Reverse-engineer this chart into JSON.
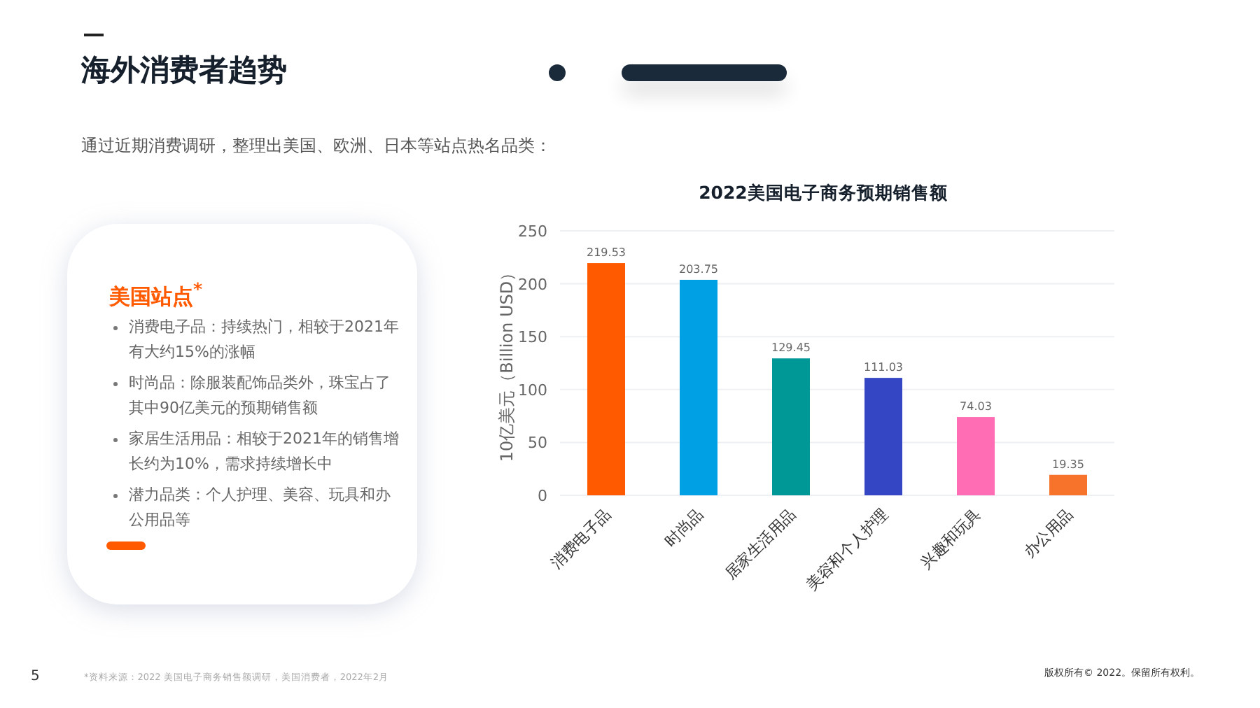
{
  "chart_data": {
    "type": "bar",
    "title": "2022美国电子商务预期销售额",
    "ylabel": "10亿美元（Billion USD）",
    "categories": [
      "消费电子品",
      "时尚品",
      "居家生活用品",
      "美容和个人护理",
      "兴趣和玩具",
      "办公用品"
    ],
    "values": [
      219.53,
      203.75,
      129.45,
      111.03,
      74.03,
      19.35
    ],
    "colors": [
      "#ff5a00",
      "#00a1e4",
      "#009797",
      "#3446c4",
      "#ff6eb4",
      "#f7722a"
    ],
    "ylim": [
      0,
      250
    ],
    "yticks": [
      0,
      50,
      100,
      150,
      200,
      250
    ],
    "grid": "y",
    "data_labels": true,
    "annotations": [
      "海外消费者趋势",
      "通过近期消费调研，整理出美国、欧洲、日本等站点热名品类：",
      "美国站点$^{*}$",
      "消费电子品：持续热门，相较于2021年有大约15%的涨幅",
      "时尚品：除服装配饰品类外，珠宝占了其中90亿美元的预期销售额",
      "家居生活用品：相较于2021年的销售增长约为10%，需求持续增长中",
      "潜力品类：个人护理、美容、玩具和办公用品等",
      "*资料来源：2022 美国电子商务销售额调研，美国消费者，2022年2月",
      "版权所有© 2022。保留所有权利。",
      "5"
    ]
  }
}
